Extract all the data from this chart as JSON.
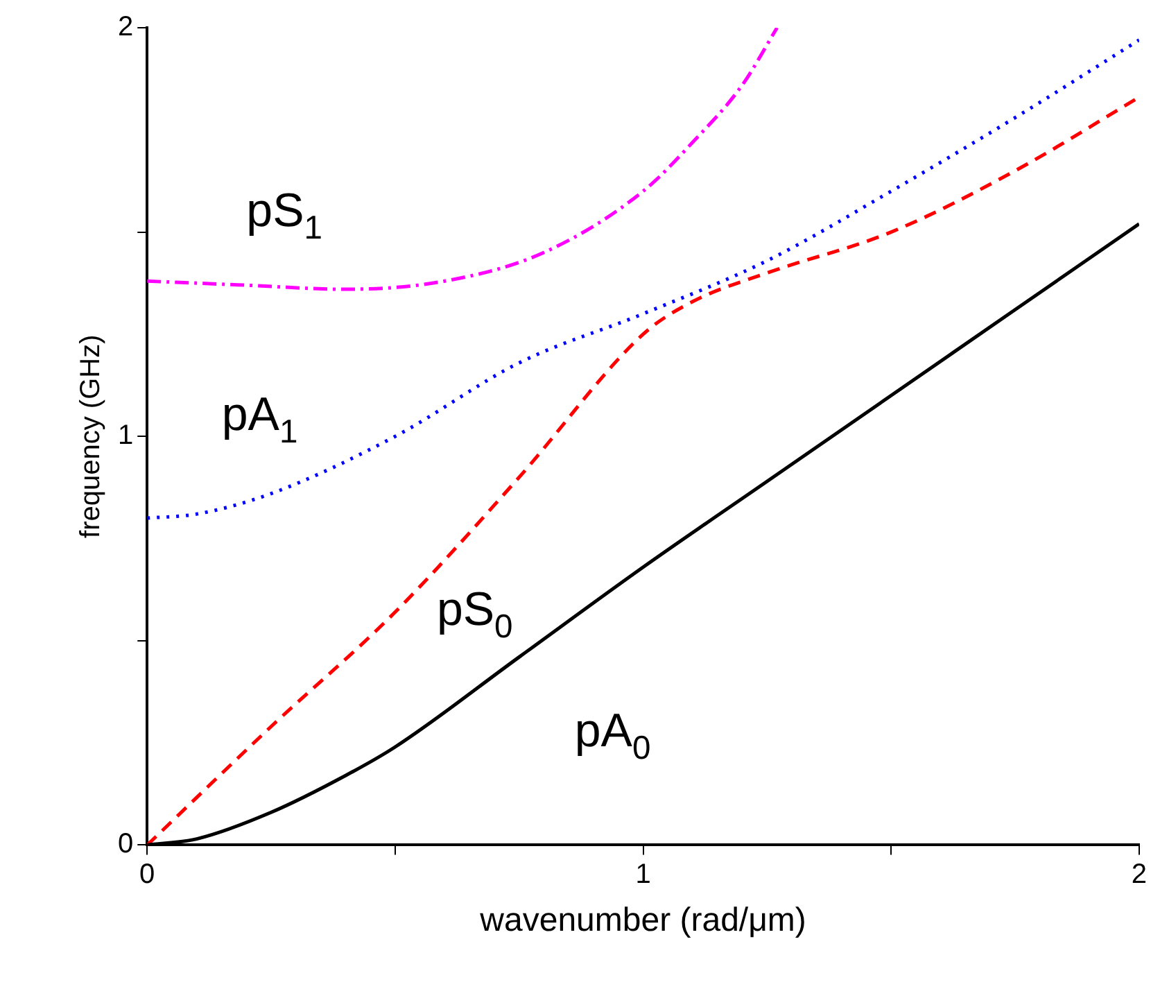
{
  "chart_data": {
    "type": "line",
    "xlabel": "wavenumber (rad/μm)",
    "ylabel": "frequency (GHz)",
    "xlim": [
      0,
      2
    ],
    "ylim": [
      0,
      2
    ],
    "xticks": [
      0,
      {
        "value": 0.5,
        "label": null
      },
      1,
      {
        "value": 1.5,
        "label": null
      },
      2
    ],
    "yticks": [
      0,
      {
        "value": 0.5,
        "label": null
      },
      1,
      {
        "value": 1.5,
        "label": null
      },
      2
    ],
    "grid": false,
    "legend": false,
    "marker": "none",
    "series": [
      {
        "name": "pA$_{0}$",
        "color": "#000000",
        "line_style": "solid",
        "x": [
          0,
          0.1,
          0.25,
          0.4,
          0.5,
          0.75,
          1,
          1.25,
          1.5,
          1.75,
          2
        ],
        "values": [
          0,
          0.015,
          0.08,
          0.17,
          0.24,
          0.46,
          0.68,
          0.89,
          1.1,
          1.31,
          1.52
        ]
      },
      {
        "name": "pS$_{0}$",
        "color": "#ff0000",
        "line_style": "dashed",
        "x": [
          0,
          0.25,
          0.5,
          0.75,
          1,
          1.1,
          1.25,
          1.5,
          1.75,
          2
        ],
        "values": [
          0,
          0.29,
          0.57,
          0.9,
          1.25,
          1.33,
          1.4,
          1.5,
          1.65,
          1.83
        ]
      },
      {
        "name": "pA$_{1}$",
        "color": "#0000ff",
        "line_style": "dotted",
        "x": [
          0,
          0.1,
          0.25,
          0.5,
          0.75,
          1,
          1.25,
          1.5,
          1.75,
          2
        ],
        "values": [
          0.8,
          0.81,
          0.86,
          1.0,
          1.18,
          1.3,
          1.43,
          1.6,
          1.78,
          1.97
        ]
      },
      {
        "name": "pS$_{1}$",
        "color": "#ff00ff",
        "line_style": "dashdot",
        "x": [
          0,
          0.2,
          0.4,
          0.6,
          0.8,
          1,
          1.1,
          1.2,
          1.27
        ],
        "values": [
          1.38,
          1.37,
          1.36,
          1.38,
          1.45,
          1.6,
          1.72,
          1.86,
          2
        ]
      }
    ]
  }
}
